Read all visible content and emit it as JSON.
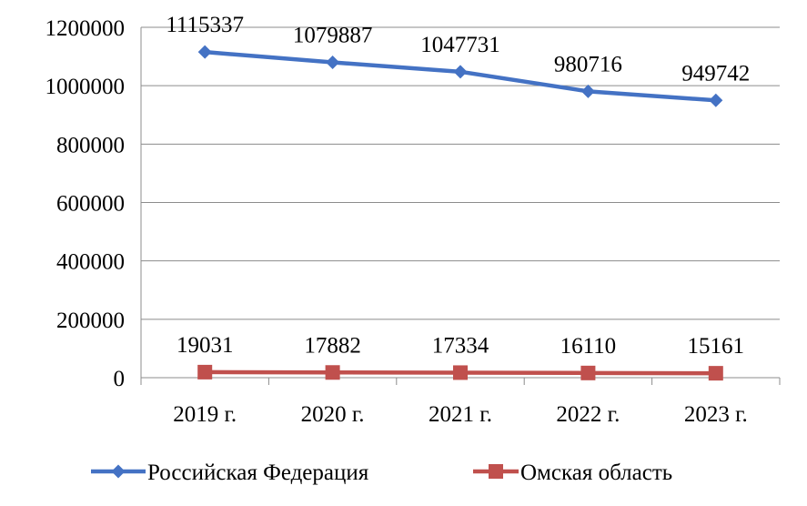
{
  "chart_data": {
    "type": "line",
    "categories": [
      "2019 г.",
      "2020 г.",
      "2021 г.",
      "2022 г.",
      "2023 г."
    ],
    "series": [
      {
        "name": "Российская Федерация",
        "values": [
          1115337,
          1079887,
          1047731,
          980716,
          949742
        ],
        "labels": [
          "1115337",
          "1079887",
          "1047731",
          "980716",
          "949742"
        ],
        "color": "#4472C4",
        "marker": "diamond"
      },
      {
        "name": "Омская область",
        "values": [
          19031,
          17882,
          17334,
          16110,
          15161
        ],
        "labels": [
          "19031",
          "17882",
          "17334",
          "16110",
          "15161"
        ],
        "color": "#C0504D",
        "marker": "square"
      }
    ],
    "yticks": [
      "0",
      "200000",
      "400000",
      "600000",
      "800000",
      "1000000",
      "1200000"
    ],
    "ylim": [
      0,
      1200000
    ],
    "grid": true,
    "legend_position": "bottom"
  }
}
